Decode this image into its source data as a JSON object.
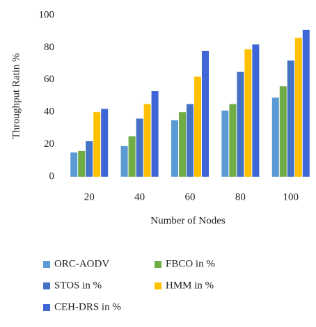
{
  "chart_data": {
    "type": "bar",
    "x_label": "Number of Nodes",
    "y_label": "Throughput Ratin %",
    "categories": [
      "20",
      "40",
      "60",
      "80",
      "100"
    ],
    "series": [
      {
        "name": "ORC-AODV",
        "color": "#5b9bd5",
        "values": [
          15,
          19,
          35,
          41,
          49
        ]
      },
      {
        "name": "FBCO in %",
        "color": "#70ad47",
        "values": [
          16,
          25,
          40,
          45,
          56
        ]
      },
      {
        "name": "STOS in %",
        "color": "#4472c4",
        "values": [
          22,
          36,
          45,
          65,
          72
        ]
      },
      {
        "name": "HMM in %",
        "color": "#ffc000",
        "values": [
          40,
          45,
          62,
          79,
          86
        ]
      },
      {
        "name": "CEH-DRS in %",
        "color": "#3f66d6",
        "values": [
          42,
          53,
          78,
          82,
          91
        ]
      }
    ],
    "ylim": [
      0,
      100
    ],
    "yticks": [
      0,
      20,
      40,
      60,
      80,
      100
    ],
    "grid": false,
    "legend": "bottom"
  }
}
